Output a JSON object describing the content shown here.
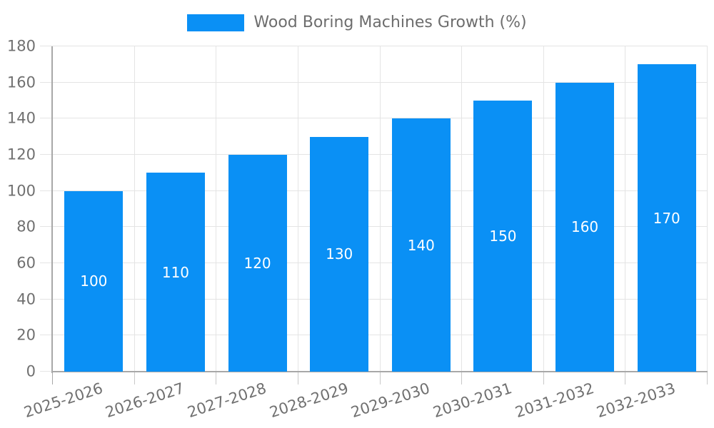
{
  "chart_data": {
    "type": "bar",
    "title": "",
    "legend": "Wood Boring Machines Growth (%)",
    "legend_position": "top",
    "categories": [
      "2025-2026",
      "2026-2027",
      "2027-2028",
      "2028-2029",
      "2029-2030",
      "2030-2031",
      "2031-2032",
      "2032-2033"
    ],
    "values": [
      100,
      110,
      120,
      130,
      140,
      150,
      160,
      170
    ],
    "bar_value_labels": [
      "100",
      "110",
      "120",
      "130",
      "140",
      "150",
      "160",
      "170"
    ],
    "xlabel": "",
    "ylabel": "",
    "ylim": [
      0,
      180
    ],
    "yticks": [
      0,
      20,
      40,
      60,
      80,
      100,
      120,
      140,
      160,
      180
    ],
    "grid": true,
    "colors": {
      "bar": "#0a90f5",
      "axis": "#a8a8a8",
      "grid": "#e4e4e4",
      "tick": "#c9c9c9",
      "axis_label_text": "#707070",
      "legend_text": "#6d6d6d",
      "value_label_text": "#ffffff",
      "background": "#ffffff"
    }
  }
}
